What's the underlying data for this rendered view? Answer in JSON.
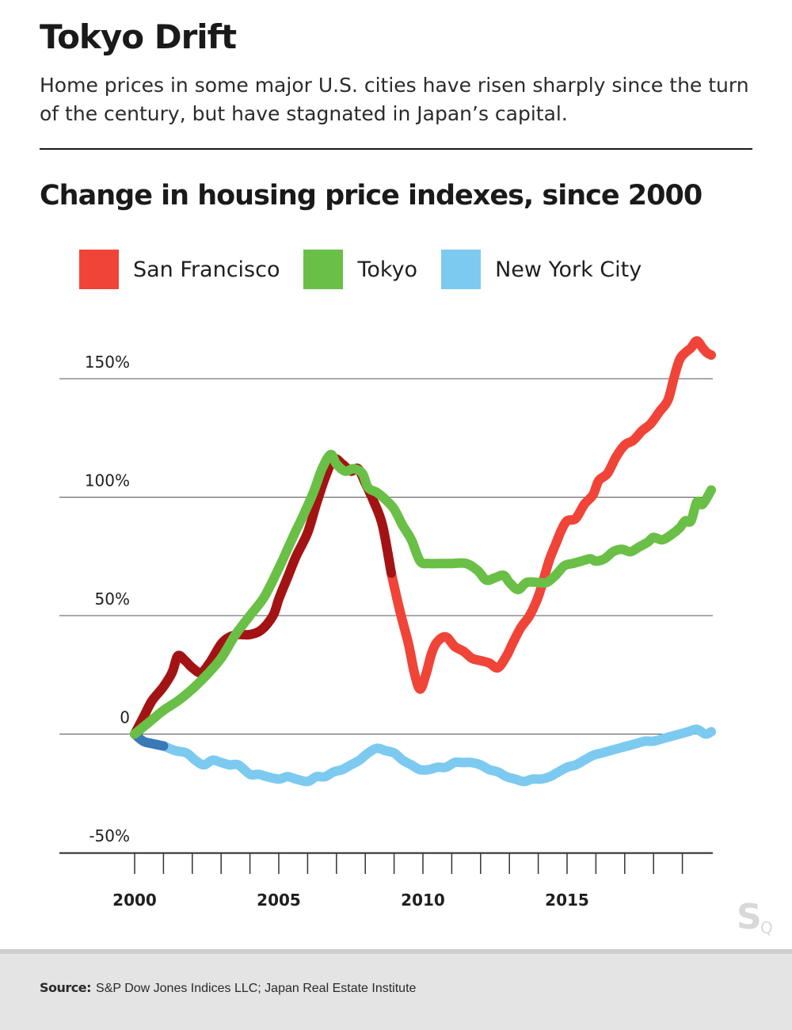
{
  "header": {
    "title": "Tokyo Drift",
    "dek": "Home prices in some major U.S. cities have risen sharply since the turn of the century, but have stagnated in Japan’s capital."
  },
  "colors": {
    "san_francisco": "#f04438",
    "san_francisco_early": "#a41313",
    "tokyo": "#6abf46",
    "new_york": "#7ccaf0",
    "new_york_early": "#3a78b8",
    "gridline": "#555555"
  },
  "legend": [
    {
      "label": "San Francisco",
      "color": "#f04438"
    },
    {
      "label": "Tokyo",
      "color": "#6abf46"
    },
    {
      "label": "New York City",
      "color": "#7ccaf0"
    }
  ],
  "footer": {
    "source_label": "Source:",
    "source_text": "S&P Dow Jones Indices LLC; Japan Real Estate Institute"
  },
  "logo_icon": "sq-logo-icon",
  "chart_data": {
    "type": "line",
    "title": "Change in housing price indexes, since 2000",
    "xlabel": "",
    "ylabel": "",
    "xlim": [
      1998.25,
      2020
    ],
    "ylim": [
      -51,
      175
    ],
    "grid": "horizontal",
    "legend_position": "top",
    "y_ticks": [
      150,
      100,
      50,
      0,
      -50
    ],
    "y_tick_labels": [
      "150%",
      "100%",
      "50%",
      "0",
      "-50%"
    ],
    "x_ticks": [
      2000,
      2005,
      2010,
      2015
    ],
    "x_tick_labels": [
      "2000",
      "2005",
      "2010",
      "2015"
    ],
    "x_minor_ticks": [
      2000,
      2001,
      2002,
      2003,
      2004,
      2005,
      2006,
      2007,
      2008,
      2009,
      2010,
      2011,
      2012,
      2013,
      2014,
      2015,
      2016,
      2017,
      2018,
      2019
    ],
    "series": [
      {
        "name": "San Francisco",
        "color": "#f04438",
        "x": [
          2000,
          2000.3,
          2000.6,
          2001,
          2001.3,
          2001.5,
          2001.75,
          2002,
          2002.3,
          2002.6,
          2003,
          2003.3,
          2003.6,
          2004,
          2004.4,
          2004.8,
          2005,
          2005.3,
          2005.6,
          2006,
          2006.3,
          2006.6,
          2006.9,
          2007.2,
          2007.5,
          2007.75,
          2008,
          2008.3,
          2008.6,
          2008.9,
          2009.2,
          2009.5,
          2009.7,
          2009.9,
          2010.1,
          2010.3,
          2010.5,
          2010.8,
          2011.1,
          2011.4,
          2011.7,
          2012,
          2012.3,
          2012.6,
          2012.9,
          2013.1,
          2013.4,
          2013.7,
          2014,
          2014.2,
          2014.4,
          2014.6,
          2014.8,
          2015,
          2015.3,
          2015.6,
          2015.9,
          2016.1,
          2016.4,
          2016.7,
          2017,
          2017.3,
          2017.6,
          2017.9,
          2018.2,
          2018.5,
          2018.7,
          2018.9,
          2019.1,
          2019.3,
          2019.5,
          2019.7,
          2019.85,
          2020
        ],
        "values": [
          0,
          7,
          14,
          20,
          26,
          33,
          31,
          28,
          26,
          30,
          38,
          41,
          42,
          42,
          44,
          50,
          57,
          66,
          75,
          85,
          97,
          108,
          116,
          114,
          111,
          112,
          106,
          98,
          88,
          68,
          52,
          38,
          26,
          19,
          25,
          34,
          39,
          41,
          37,
          35,
          32,
          31,
          30,
          28,
          33,
          38,
          45,
          50,
          58,
          66,
          74,
          80,
          86,
          90,
          91,
          97,
          101,
          107,
          110,
          117,
          122,
          124,
          128,
          131,
          136,
          141,
          150,
          158,
          161,
          163,
          166,
          163,
          161,
          160
        ],
        "early_color": "#a41313",
        "early_until": 2008.9
      },
      {
        "name": "Tokyo",
        "color": "#6abf46",
        "x": [
          2000,
          2000.5,
          2001,
          2001.5,
          2002,
          2002.5,
          2003,
          2003.5,
          2004,
          2004.5,
          2005,
          2005.3,
          2005.6,
          2005.8,
          2006.2,
          2006.5,
          2006.8,
          2007,
          2007.3,
          2007.6,
          2007.9,
          2008.1,
          2008.4,
          2008.7,
          2009,
          2009.3,
          2009.6,
          2009.9,
          2010.2,
          2010.6,
          2011,
          2011.5,
          2011.9,
          2012.2,
          2012.5,
          2012.8,
          2013,
          2013.3,
          2013.6,
          2014,
          2014.3,
          2014.6,
          2014.9,
          2015.2,
          2015.5,
          2015.8,
          2016,
          2016.3,
          2016.6,
          2016.9,
          2017.2,
          2017.5,
          2017.8,
          2018,
          2018.3,
          2018.6,
          2018.9,
          2019.1,
          2019.3,
          2019.5,
          2019.7,
          2020
        ],
        "values": [
          0,
          5,
          10,
          14,
          19,
          25,
          32,
          42,
          50,
          58,
          70,
          78,
          86,
          91,
          102,
          112,
          118,
          114,
          111,
          112,
          110,
          104,
          102,
          99,
          95,
          88,
          82,
          73,
          72,
          72,
          72,
          72,
          69,
          65,
          66,
          67,
          64,
          61,
          64,
          64,
          64,
          67,
          71,
          72,
          73,
          74,
          73,
          74,
          77,
          78,
          77,
          79,
          81,
          83,
          82,
          84,
          87,
          90,
          90,
          98,
          97,
          103
        ],
        "early_color": "#6abf46",
        "early_until": 2000
      },
      {
        "name": "New York City",
        "color": "#7ccaf0",
        "x": [
          2000,
          2000.3,
          2000.6,
          2001,
          2001.4,
          2001.8,
          2002.1,
          2002.4,
          2002.7,
          2003,
          2003.3,
          2003.6,
          2004,
          2004.3,
          2004.6,
          2005,
          2005.3,
          2005.6,
          2006,
          2006.3,
          2006.6,
          2006.9,
          2007.2,
          2007.5,
          2007.8,
          2008.1,
          2008.4,
          2008.7,
          2009,
          2009.3,
          2009.6,
          2009.9,
          2010.2,
          2010.5,
          2010.8,
          2011.1,
          2011.4,
          2011.7,
          2012,
          2012.3,
          2012.6,
          2012.9,
          2013.2,
          2013.5,
          2013.8,
          2014.1,
          2014.4,
          2014.7,
          2015,
          2015.3,
          2015.6,
          2015.9,
          2016.2,
          2016.5,
          2016.8,
          2017.1,
          2017.4,
          2017.7,
          2018,
          2018.3,
          2018.6,
          2018.9,
          2019.2,
          2019.5,
          2019.8,
          2020
        ],
        "values": [
          0,
          -3,
          -4,
          -5,
          -7,
          -8,
          -11,
          -13,
          -11,
          -12,
          -13,
          -13,
          -17,
          -17,
          -18,
          -19,
          -18,
          -19,
          -20,
          -18,
          -18,
          -16,
          -15,
          -13,
          -11,
          -8,
          -6,
          -7,
          -8,
          -11,
          -13,
          -15,
          -15,
          -14,
          -14,
          -12,
          -12,
          -12,
          -13,
          -15,
          -16,
          -18,
          -19,
          -20,
          -19,
          -19,
          -18,
          -16,
          -14,
          -13,
          -11,
          -9,
          -8,
          -7,
          -6,
          -5,
          -4,
          -3,
          -3,
          -2,
          -1,
          0,
          1,
          2,
          0,
          1
        ],
        "early_color": "#3a78b8",
        "early_until": 2001
      }
    ]
  }
}
